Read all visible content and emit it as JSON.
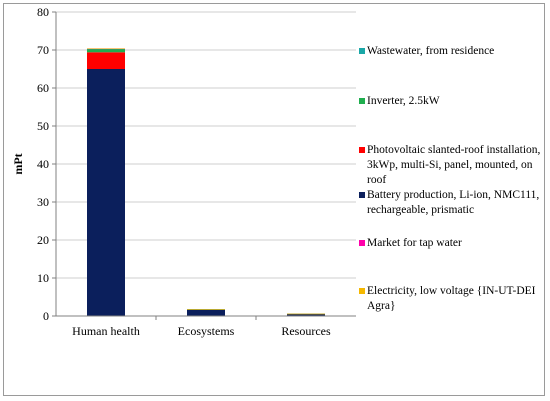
{
  "chart_data": {
    "type": "bar",
    "stacked": true,
    "categories": [
      "Human health",
      "Ecosystems",
      "Resources"
    ],
    "ylabel": "mPt",
    "ylim": [
      0,
      80
    ],
    "yticks": [
      0,
      10,
      20,
      30,
      40,
      50,
      60,
      70,
      80
    ],
    "grid": true,
    "legend_position": "right",
    "series": [
      {
        "name": "Battery production, Li-ion, NMC111, rechargeable, prismatic",
        "color": "#0b1f5c",
        "values": [
          65.0,
          1.6,
          0.55
        ]
      },
      {
        "name": "Photovoltaic slanted-roof installation, 3kWp, multi-Si, panel, mounted, on roof",
        "color": "#ff0000",
        "values": [
          4.4,
          0.12,
          0.03
        ]
      },
      {
        "name": "Inverter, 2.5kW",
        "color": "#1fae4e",
        "values": [
          0.9,
          0.03,
          0.01
        ]
      },
      {
        "name": "Wastewater, from residence",
        "color": "#1aa7a7",
        "values": [
          0.05,
          0.0,
          0.0
        ]
      },
      {
        "name": "Market for tap water",
        "color": "#ff00aa",
        "values": [
          0.02,
          0.0,
          0.0
        ]
      },
      {
        "name": "Electricity, low voltage {IN-UT-DEI Agra}",
        "color": "#f5b800",
        "values": [
          0.05,
          0.05,
          0.01
        ]
      }
    ]
  },
  "legend_order": [
    3,
    2,
    1,
    0,
    4,
    5
  ]
}
